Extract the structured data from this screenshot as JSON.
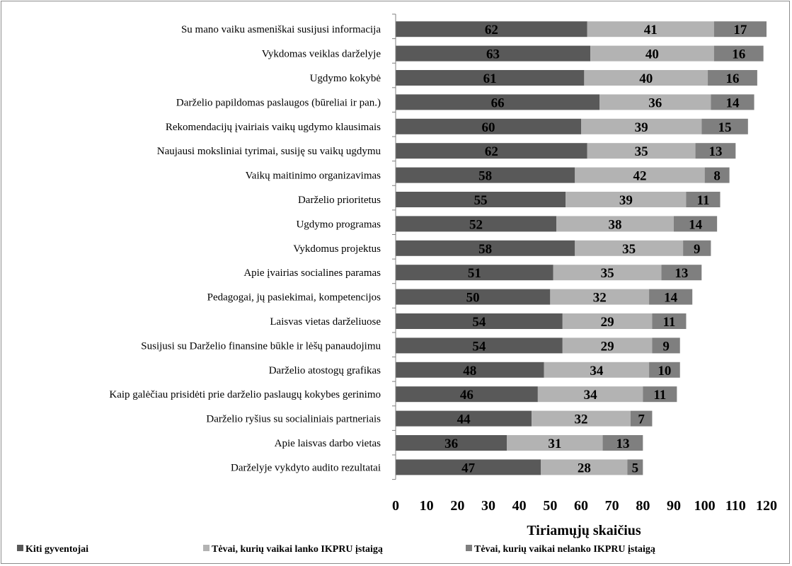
{
  "chart_data": {
    "type": "bar",
    "orientation": "horizontal",
    "stacked": true,
    "categories": [
      "Su mano vaiku asmeniškai susijusi informacija",
      "Vykdomas veiklas darželyje",
      "Ugdymo kokybė",
      "Darželio papildomas  paslaugos (būreliai ir pan.)",
      "Rekomendacijų įvairiais vaikų ugdymo klausimais",
      "Naujausi moksliniai tyrimai, susiję su vaikų ugdymu",
      "Vaikų  maitinimo organizavimas",
      "Darželio  prioritetus",
      "Ugdymo programas",
      "Vykdomus projektus",
      "Apie įvairias socialines paramas",
      "Pedagogai,  jų pasiekimai, kompetencijos",
      "Laisvas vietas darželiuose",
      "Susijusi su Darželio finansine būkle ir lėšų panaudojimu",
      "Darželio atostogų grafikas",
      "Kaip galėčiau prisidėti prie darželio paslaugų kokybes gerinimo",
      "Darželio ryšius su socialiniais partneriais",
      "Apie laisvas darbo vietas",
      "Darželyje vykdyto audito rezultatai"
    ],
    "series": [
      {
        "name": "Kiti gyventojai",
        "color": "#595959",
        "values": [
          62,
          63,
          61,
          66,
          60,
          62,
          58,
          55,
          52,
          58,
          51,
          50,
          54,
          54,
          48,
          46,
          44,
          36,
          47
        ]
      },
      {
        "name": "Tėvai, kurių vaikai lanko IKPRU įstaigą",
        "color": "#b3b3b3",
        "values": [
          41,
          40,
          40,
          36,
          39,
          35,
          42,
          39,
          38,
          35,
          35,
          32,
          29,
          29,
          34,
          34,
          32,
          31,
          28
        ]
      },
      {
        "name": "Tėvai, kurių vaikai nelanko IKPRU įstaigą",
        "color": "#7f7f7f",
        "values": [
          17,
          16,
          16,
          14,
          15,
          13,
          8,
          11,
          14,
          9,
          13,
          14,
          11,
          9,
          10,
          11,
          7,
          13,
          5
        ]
      }
    ],
    "xlabel": "Tiriamųjų skaičius",
    "xlim": [
      0,
      120
    ],
    "xticks": [
      "0",
      "10",
      "20",
      "30",
      "40",
      "50",
      "60",
      "70",
      "80",
      "90",
      "100",
      "110",
      "120"
    ],
    "grid": false,
    "legend_position": "bottom"
  }
}
